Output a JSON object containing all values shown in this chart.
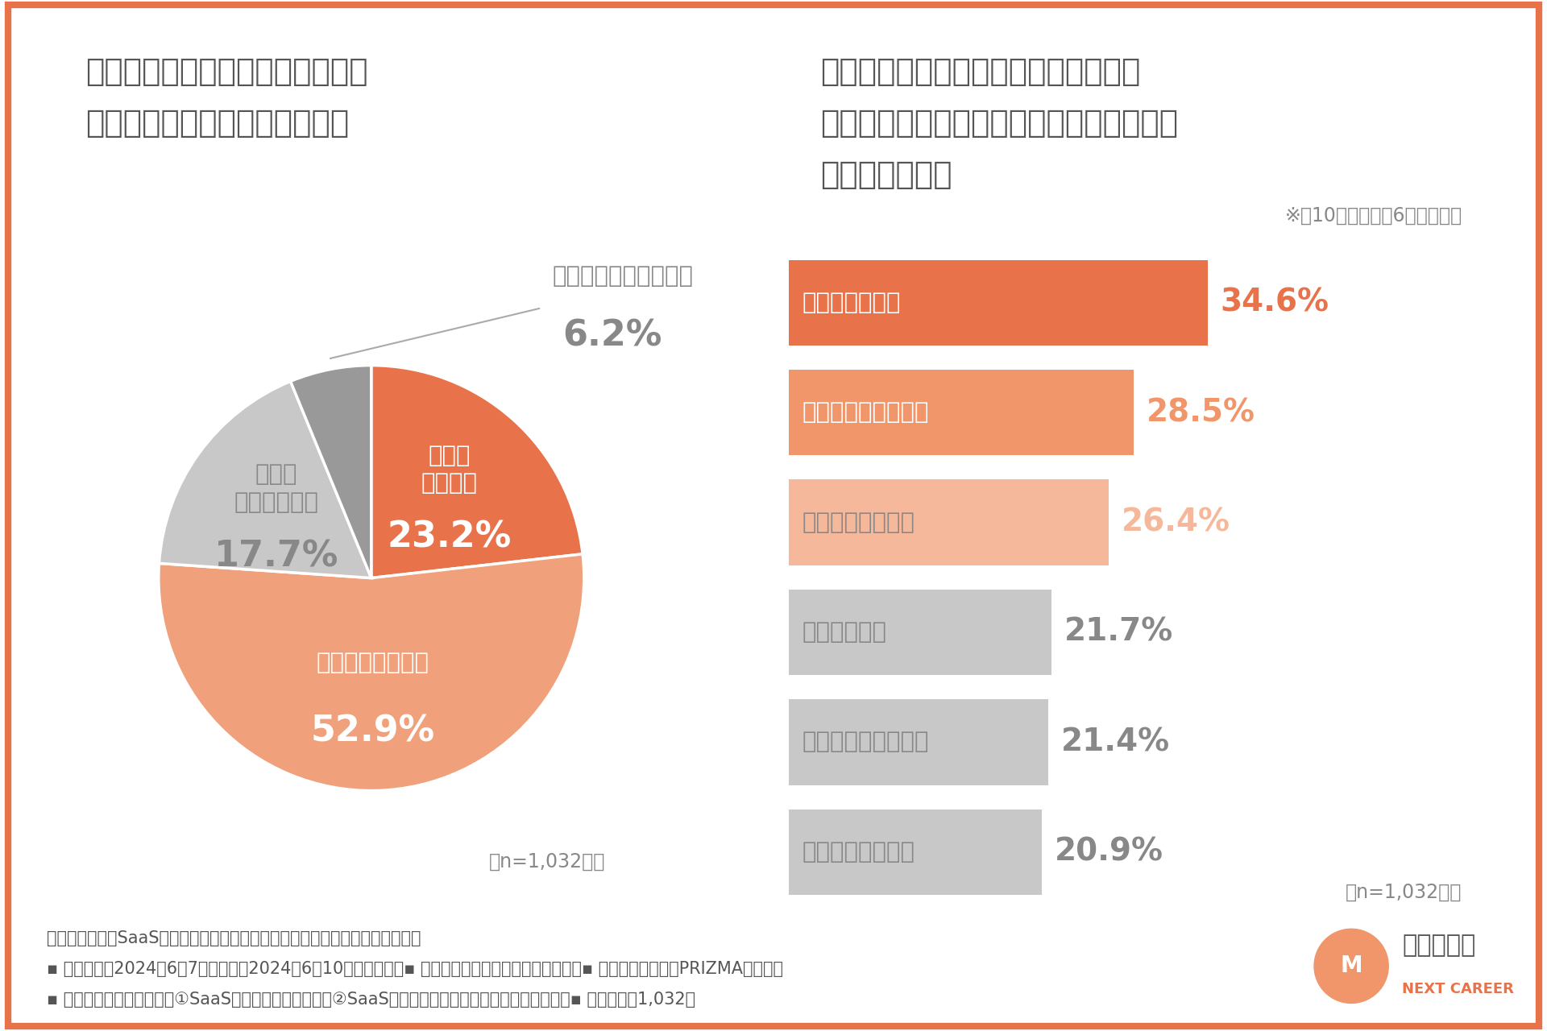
{
  "background_color": "#ffffff",
  "border_color": "#E8724A",
  "border_width": 8,
  "left_title_line1": "貴社では産休、育休、介護休暇の",
  "left_title_line2": "取得はしやすいと思いますか？",
  "right_title_line1": "産休、育休、介護休暇の取得において",
  "right_title_line2": "課題と感じることについて教えてください",
  "right_title_line3": "（複数回答可）",
  "right_subtitle": "※全10項目中上位6項目を抜粋",
  "n_label": "（n=1,032人）",
  "pie_data": [
    23.2,
    52.9,
    17.7,
    6.2
  ],
  "pie_colors": [
    "#E8724A",
    "#F0A07A",
    "#C8C8C8",
    "#999999"
  ],
  "pie_inner_labels": [
    "とても\nそう思う",
    "ある程度そう思う",
    "あまり\nそう思わない"
  ],
  "pie_inner_pct": [
    "23.2%",
    "52.9%",
    "17.7%"
  ],
  "pie_inner_colors": [
    "#ffffff",
    "#ffffff",
    "#888888"
  ],
  "pie_outer_label": "まったくそう思わない",
  "pie_outer_pct": "6.2%",
  "bar_categories": [
    "職場の負担増大",
    "仕事の引継ぎ、後任",
    "社内での事例不足",
    "希望者の不足",
    "メンバーの理解不足",
    "経営層の理解不足"
  ],
  "bar_values": [
    34.6,
    28.5,
    26.4,
    21.7,
    21.4,
    20.9
  ],
  "bar_colors": [
    "#E8724A",
    "#F0966A",
    "#F5B89A",
    "#C8C8C8",
    "#C8C8C8",
    "#C8C8C8"
  ],
  "bar_pct_colors": [
    "#E8724A",
    "#F0966A",
    "#F5B89A",
    "#888888",
    "#888888",
    "#888888"
  ],
  "bar_text_colors": [
    "#ffffff",
    "#ffffff",
    "#888888",
    "#888888",
    "#888888",
    "#888888"
  ],
  "footer_line1": "《調査概要：「SaaS企業における男女共同参画推進動向」に関する実態調査》",
  "footer_line2": "▪ 調査期間：2024年6月7日（金）～2024年6月10日（月）　　▪ 調査方法：インターネット調査　　▪ モニター提供元：PRIZMAリサーチ",
  "footer_line3": "▪ 調査対象：調査回答時に①SaaS企業に勤めている方／②SaaS企業の人事担当者と回答したモニター　▪ 調査人数：1,032人",
  "title_fontsize": 28,
  "bar_label_fontsize": 21,
  "bar_pct_fontsize": 28,
  "pie_pct_fontsize": 32,
  "pie_label_fontsize": 21,
  "footer_fontsize": 15,
  "subtitle_fontsize": 17,
  "n_fontsize": 17,
  "logo_main_fontsize": 22,
  "logo_sub_fontsize": 13
}
